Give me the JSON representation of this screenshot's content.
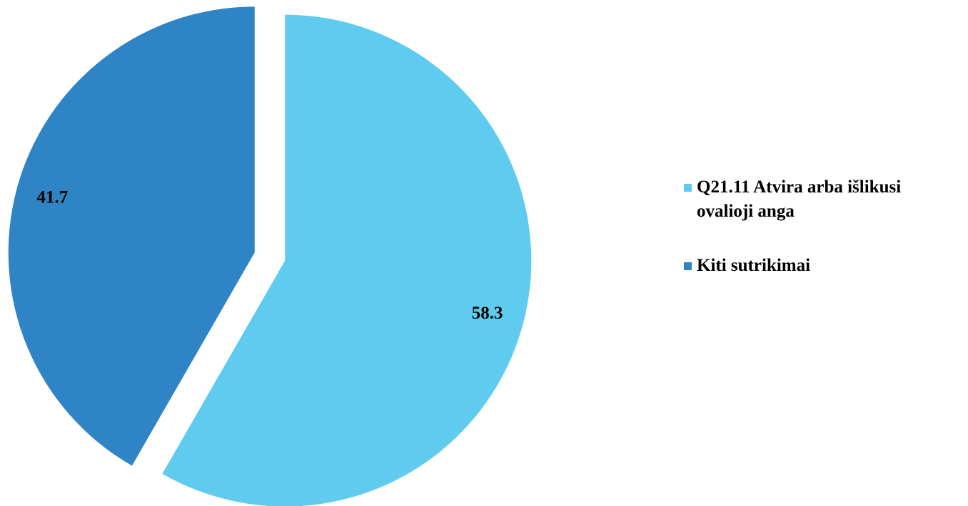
{
  "chart_data": {
    "type": "pie",
    "categories": [
      "Q21.11 Atvira arba išlikusi ovalioji anga",
      "Kiti sutrikimai"
    ],
    "values": [
      58.3,
      41.7
    ],
    "colors": [
      "#5ecbef",
      "#2e84c4"
    ],
    "legend": "right"
  }
}
